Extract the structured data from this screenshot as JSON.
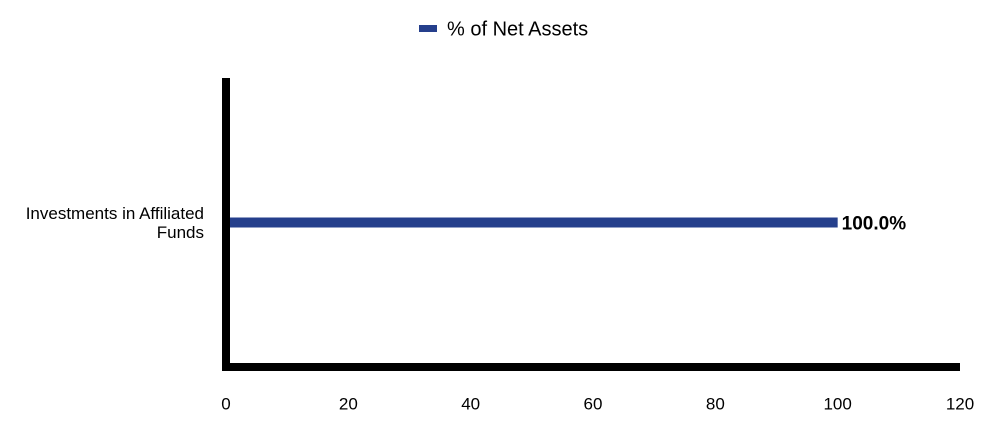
{
  "chart_data": {
    "type": "bar",
    "orientation": "horizontal",
    "categories": [
      "Investments in Affiliated Funds"
    ],
    "series": [
      {
        "name": "% of Net Assets",
        "color": "#253f8c",
        "values": [
          100.0
        ],
        "value_labels": [
          "100.0%"
        ]
      }
    ],
    "xlim": [
      0,
      120
    ],
    "xticks": [
      0,
      20,
      40,
      60,
      80,
      100,
      120
    ],
    "grid": false,
    "legend": "top"
  }
}
